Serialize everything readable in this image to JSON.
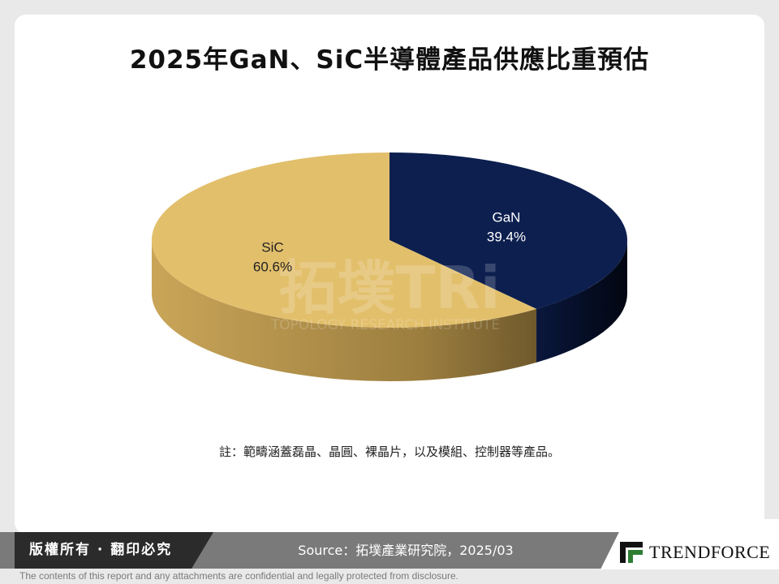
{
  "title": "2025年GaN、SiC半導體產品供應比重預估",
  "note": "註：範疇涵蓋磊晶、晶圓、裸晶片，以及模組、控制器等產品。",
  "footer": {
    "copyright": "版權所有 · 翻印必究",
    "source": "Source：拓墣產業研究院，2025/03",
    "logo_text": "TRENDFORCE",
    "disclaimer": "The contents of this report and any attachments are confidential and legally protected from disclosure."
  },
  "watermark": {
    "brand": "拓墣TRi",
    "subtitle": "TOPOLOGY RESEARCH INSTITUTE"
  },
  "chart_data": {
    "type": "pie",
    "title": "2025年GaN、SiC半導體產品供應比重預估",
    "style": "3d",
    "slices": [
      {
        "label": "GaN",
        "value": 39.4,
        "value_label": "39.4%",
        "color": "#0d1f4f",
        "side_color": "#06102b"
      },
      {
        "label": "SiC",
        "value": 60.6,
        "value_label": "60.6%",
        "color": "#e2bf6b",
        "side_color": "#a88a4a"
      }
    ]
  },
  "colors": {
    "footer_band": "#7a7a7a",
    "copyright_bg": "#2b2b2b",
    "logo_green": "#2e7d32"
  },
  "icons": {
    "logo": "trendforce-logo-icon"
  }
}
